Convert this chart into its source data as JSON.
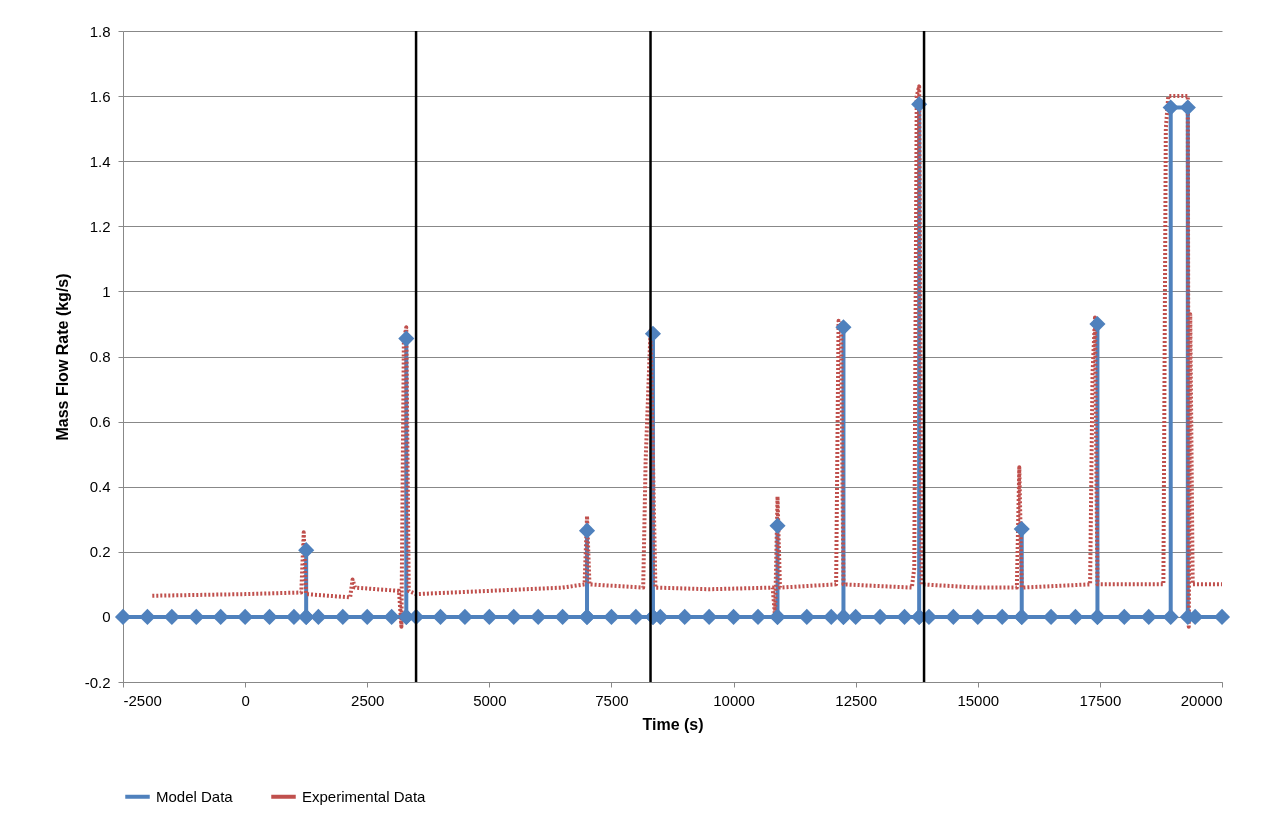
{
  "chart_data": {
    "type": "line",
    "xlabel": "Time (s)",
    "ylabel": "Mass Flow Rate (kg/s)",
    "xlim": [
      -2500,
      20000
    ],
    "xticks": [
      -2500,
      0,
      2500,
      5000,
      7500,
      10000,
      12500,
      15000,
      17500,
      20000
    ],
    "ylim": [
      -0.2,
      1.8
    ],
    "yticks": [
      -0.2,
      0,
      0.2,
      0.4,
      0.6,
      0.8,
      1,
      1.2,
      1.4,
      1.6,
      1.8
    ],
    "grid": "y",
    "legend": "bottom",
    "series": [
      {
        "name": "Model Data",
        "color": "#4f81bd",
        "marker": "diamond",
        "line_style": "solid",
        "x": [
          -2500,
          -2000,
          -1500,
          -1000,
          -500,
          0,
          500,
          1000,
          1250,
          1250,
          1250,
          1500,
          2000,
          2500,
          3000,
          3300,
          3300,
          3300,
          3500,
          4000,
          4500,
          5000,
          5500,
          6000,
          6500,
          7000,
          7000,
          7000,
          7500,
          8000,
          8350,
          8350,
          8350,
          8500,
          9000,
          9500,
          10000,
          10500,
          10900,
          10900,
          10900,
          11500,
          12000,
          12250,
          12250,
          12250,
          12500,
          13000,
          13500,
          13800,
          13800,
          13800,
          14000,
          14500,
          15000,
          15500,
          15900,
          15900,
          15900,
          16500,
          17000,
          17450,
          17450,
          17450,
          18000,
          18500,
          18950,
          18950,
          19300,
          19300,
          19450,
          20000
        ],
        "values": [
          0,
          0,
          0,
          0,
          0,
          0,
          0,
          0,
          0,
          0.205,
          0,
          0,
          0,
          0,
          0,
          0,
          0.855,
          0,
          0,
          0,
          0,
          0,
          0,
          0,
          0,
          0,
          0.265,
          0,
          0,
          0,
          0,
          0.87,
          0,
          0,
          0,
          0,
          0,
          0,
          0,
          0.28,
          0,
          0,
          0,
          0,
          0.89,
          0,
          0,
          0,
          0,
          0,
          1.575,
          0,
          0,
          0,
          0,
          0,
          0,
          0.27,
          0,
          0,
          0,
          0,
          0.9,
          0,
          0,
          0,
          0,
          1.565,
          1.565,
          0,
          0,
          0
        ]
      },
      {
        "name": "Experimental Data",
        "color": "#c0504d",
        "marker": "none",
        "line_style": "dotted",
        "x": [
          -1900,
          0,
          1150,
          1200,
          1250,
          2150,
          2200,
          2250,
          3150,
          3200,
          3250,
          3300,
          3350,
          3500,
          5000,
          6500,
          6950,
          7000,
          7050,
          8150,
          8200,
          8300,
          8400,
          9500,
          10800,
          10850,
          10900,
          10950,
          12100,
          12150,
          12200,
          12250,
          13650,
          13700,
          13750,
          13800,
          13850,
          15000,
          15800,
          15850,
          15900,
          17300,
          17350,
          17400,
          17450,
          18800,
          18850,
          18900,
          19300,
          19320,
          19350,
          19400,
          20000
        ],
        "values": [
          0.065,
          0.07,
          0.075,
          0.26,
          0.07,
          0.06,
          0.115,
          0.09,
          0.08,
          -0.03,
          0.85,
          0.89,
          0.08,
          0.07,
          0.08,
          0.09,
          0.1,
          0.31,
          0.1,
          0.09,
          0.48,
          0.88,
          0.09,
          0.085,
          0.09,
          0.0,
          0.37,
          0.09,
          0.1,
          0.91,
          0.9,
          0.1,
          0.09,
          0.15,
          1.6,
          1.63,
          0.1,
          0.09,
          0.09,
          0.46,
          0.09,
          0.1,
          0.75,
          0.92,
          0.1,
          0.1,
          1.5,
          1.6,
          1.6,
          -0.03,
          0.93,
          0.1,
          0.1
        ]
      }
    ],
    "ref_lines": [
      {
        "axis": "x",
        "value": 3500,
        "color": "#000000"
      },
      {
        "axis": "x",
        "value": 8300,
        "color": "#000000"
      },
      {
        "axis": "x",
        "value": 13900,
        "color": "#000000"
      }
    ]
  }
}
